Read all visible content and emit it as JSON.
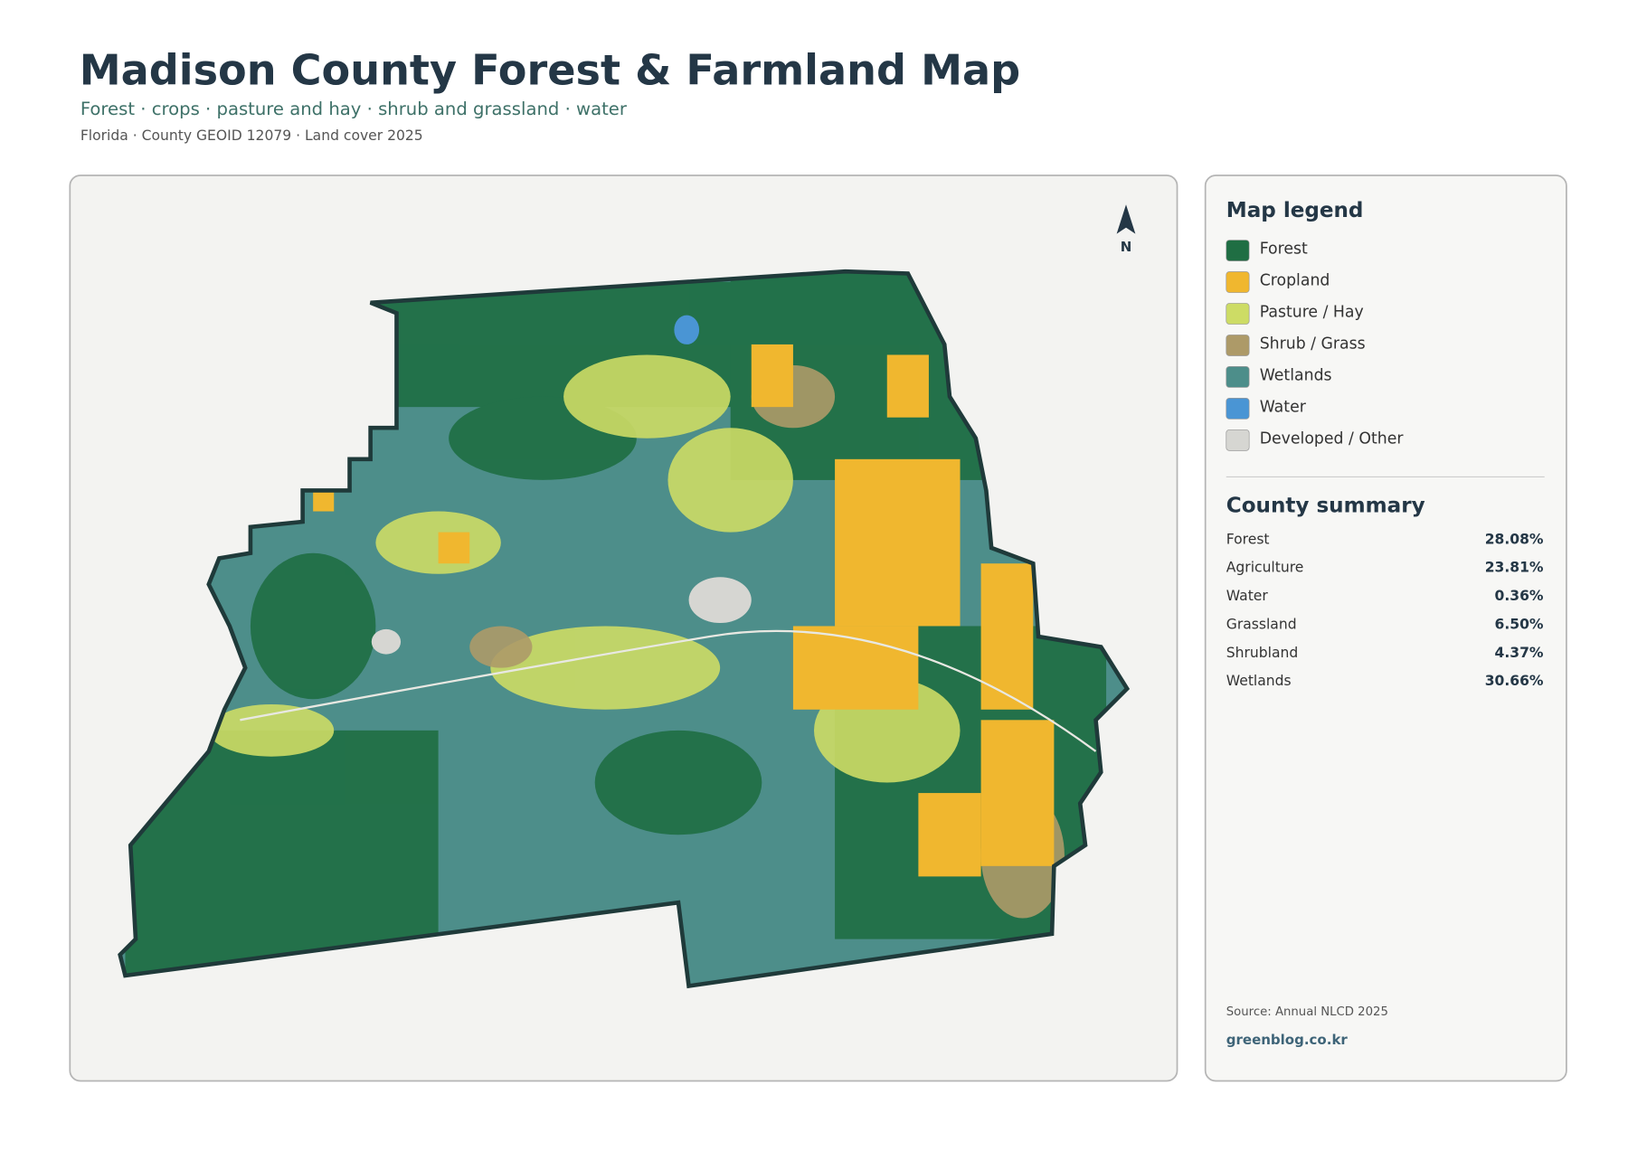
{
  "header": {
    "title": "Madison County Forest & Farmland Map",
    "subtitle": "Forest · crops · pasture and hay · shrub and grassland · water",
    "meta": "Florida · County GEOID 12079 · Land cover 2025"
  },
  "map": {
    "north_label": "N"
  },
  "legend": {
    "title": "Map legend",
    "items": [
      {
        "label": "Forest",
        "color": "#1f6e43"
      },
      {
        "label": "Cropland",
        "color": "#f0b72f"
      },
      {
        "label": "Pasture / Hay",
        "color": "#cddc65"
      },
      {
        "label": "Shrub / Grass",
        "color": "#ad9a68"
      },
      {
        "label": "Wetlands",
        "color": "#4d8e8a"
      },
      {
        "label": "Water",
        "color": "#4a95d4"
      },
      {
        "label": "Developed / Other",
        "color": "#d6d6d2"
      }
    ]
  },
  "summary": {
    "title": "County summary",
    "rows": [
      {
        "label": "Forest",
        "value": "28.08%"
      },
      {
        "label": "Agriculture",
        "value": "23.81%"
      },
      {
        "label": "Water",
        "value": "0.36%"
      },
      {
        "label": "Grassland",
        "value": "6.50%"
      },
      {
        "label": "Shrubland",
        "value": "4.37%"
      },
      {
        "label": "Wetlands",
        "value": "30.66%"
      }
    ]
  },
  "footer": {
    "source": "Source: Annual NLCD 2025",
    "site": "greenblog.co.kr"
  }
}
